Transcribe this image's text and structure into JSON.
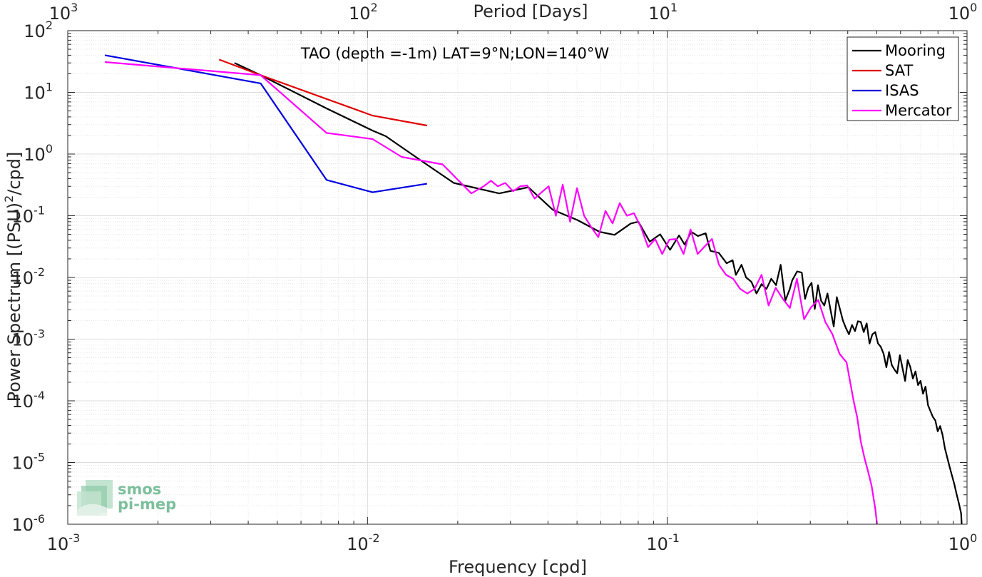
{
  "chart_data": {
    "type": "line",
    "title": "TAO (depth =-1m) LAT=9°N;LON=140°W",
    "xlabel": "Frequency [cpd]",
    "ylabel": "Power Spectrum [(PSU)",
    "ylabel_sup": "2",
    "ylabel_tail": "/cpd]",
    "top_xlabel": "Period [Days]",
    "x_scale": "log",
    "y_scale": "log",
    "xlim": [
      0.001,
      1
    ],
    "ylim": [
      1e-06,
      100
    ],
    "grid": true,
    "legend_position": "top-right",
    "x_ticks": [
      {
        "value": 0.001,
        "base": "10",
        "exp": "-3"
      },
      {
        "value": 0.01,
        "base": "10",
        "exp": "-2"
      },
      {
        "value": 0.1,
        "base": "10",
        "exp": "-1"
      },
      {
        "value": 1,
        "base": "10",
        "exp": "0"
      }
    ],
    "top_ticks": [
      {
        "value": 0.001,
        "base": "10",
        "exp": "3"
      },
      {
        "value": 0.01,
        "base": "10",
        "exp": "2"
      },
      {
        "value": 0.1,
        "base": "10",
        "exp": "1"
      },
      {
        "value": 1,
        "base": "10",
        "exp": "0"
      }
    ],
    "y_ticks": [
      {
        "value": 100,
        "base": "10",
        "exp": "2"
      },
      {
        "value": 10,
        "base": "10",
        "exp": "1"
      },
      {
        "value": 1,
        "base": "10",
        "exp": "0"
      },
      {
        "value": 0.1,
        "base": "10",
        "exp": "-1"
      },
      {
        "value": 0.01,
        "base": "10",
        "exp": "-2"
      },
      {
        "value": 0.001,
        "base": "10",
        "exp": "-3"
      },
      {
        "value": 0.0001,
        "base": "10",
        "exp": "-4"
      },
      {
        "value": 1e-05,
        "base": "10",
        "exp": "-5"
      },
      {
        "value": 1e-06,
        "base": "10",
        "exp": "-6"
      }
    ],
    "series": [
      {
        "name": "Mooring",
        "color": "#000000",
        "x": [
          0.0036,
          0.0044,
          0.0073,
          0.0104,
          0.0115,
          0.0156,
          0.0194,
          0.0275,
          0.0344,
          0.0415,
          0.0502,
          0.0594,
          0.0667,
          0.0756,
          0.0801,
          0.0874,
          0.0947,
          0.1022,
          0.1095,
          0.1143,
          0.1202,
          0.1265,
          0.1343,
          0.1393,
          0.1486,
          0.1578,
          0.1652,
          0.1694,
          0.1769,
          0.1832,
          0.1908,
          0.1985,
          0.2063,
          0.2142,
          0.2223,
          0.2306,
          0.239,
          0.2476,
          0.2563,
          0.2612,
          0.2711,
          0.2811,
          0.2882,
          0.2954,
          0.3029,
          0.3105,
          0.3183,
          0.3261,
          0.3342,
          0.3424,
          0.3508,
          0.3592,
          0.3678,
          0.3766,
          0.3856,
          0.3947,
          0.4039,
          0.4133,
          0.4228,
          0.4325,
          0.4424,
          0.4524,
          0.4626,
          0.4729,
          0.4833,
          0.494,
          0.5048,
          0.5157,
          0.5268,
          0.5381,
          0.5495,
          0.5611,
          0.5729,
          0.5848,
          0.5969,
          0.6091,
          0.6215,
          0.6341,
          0.6469,
          0.6598,
          0.6729,
          0.6862,
          0.6996,
          0.7132,
          0.727,
          0.741,
          0.7551,
          0.7694,
          0.7839,
          0.7986,
          0.8135,
          0.8285,
          0.8437,
          0.8591,
          0.8747,
          0.8905,
          0.9064,
          0.9226,
          0.9389,
          0.9554,
          0.96
        ],
        "y": [
          30,
          19,
          5.5,
          2.4,
          1.95,
          0.7,
          0.34,
          0.23,
          0.29,
          0.125,
          0.085,
          0.055,
          0.049,
          0.075,
          0.08,
          0.038,
          0.05,
          0.028,
          0.048,
          0.034,
          0.055,
          0.047,
          0.052,
          0.027,
          0.025,
          0.017,
          0.019,
          0.011,
          0.016,
          0.01,
          0.0085,
          0.0055,
          0.0078,
          0.0065,
          0.0095,
          0.0075,
          0.016,
          0.0042,
          0.0065,
          0.009,
          0.0125,
          0.012,
          0.0045,
          0.0068,
          0.0082,
          0.0031,
          0.0075,
          0.0042,
          0.0035,
          0.0055,
          0.0029,
          0.0016,
          0.0048,
          0.0031,
          0.002,
          0.0015,
          0.0012,
          0.0017,
          0.00135,
          0.00195,
          0.0019,
          0.0013,
          0.0018,
          0.00085,
          0.0012,
          0.0013,
          0.00085,
          0.00075,
          0.00058,
          0.00035,
          0.00062,
          0.00038,
          0.00032,
          0.00028,
          0.00055,
          0.00034,
          0.00021,
          0.00046,
          0.00035,
          0.00023,
          0.0003,
          0.00018,
          0.00021,
          0.00013,
          0.00017,
          8.5e-05,
          6.8e-05,
          5.5e-05,
          4.8e-05,
          3.2e-05,
          3.9e-05,
          2.8e-05,
          1.7e-05,
          1.2e-05,
          8.5e-06,
          6.2e-06,
          4.5e-06,
          3.1e-06,
          2.2e-06,
          1.5e-06,
          1e-06
        ]
      },
      {
        "name": "SAT",
        "color": "#e00000",
        "x": [
          0.0032,
          0.0044,
          0.0104,
          0.0158
        ],
        "y": [
          34,
          19,
          4.2,
          2.9
        ]
      },
      {
        "name": "ISAS",
        "color": "#0000e0",
        "x": [
          0.00133,
          0.0044,
          0.0073,
          0.0104,
          0.0158
        ],
        "y": [
          40,
          14,
          0.38,
          0.24,
          0.33
        ]
      },
      {
        "name": "Mercator",
        "color": "#ff00ff",
        "x": [
          0.00133,
          0.0044,
          0.0073,
          0.0104,
          0.013,
          0.0178,
          0.0222,
          0.0244,
          0.0258,
          0.0272,
          0.0288,
          0.0306,
          0.0323,
          0.0341,
          0.0361,
          0.0381,
          0.0402,
          0.0425,
          0.0448,
          0.0474,
          0.05,
          0.0528,
          0.0558,
          0.0589,
          0.0622,
          0.0657,
          0.0694,
          0.0733,
          0.0774,
          0.0817,
          0.0863,
          0.0911,
          0.0962,
          0.1016,
          0.1073,
          0.1133,
          0.1196,
          0.1263,
          0.1334,
          0.1409,
          0.1488,
          0.1571,
          0.1659,
          0.1752,
          0.185,
          0.1953,
          0.2063,
          0.2178,
          0.23,
          0.2429,
          0.2565,
          0.2708,
          0.286,
          0.302,
          0.3189,
          0.3367,
          0.3556,
          0.3755,
          0.3965,
          0.4187,
          0.4299,
          0.4421,
          0.4546,
          0.4674,
          0.4806,
          0.4942,
          0.501
        ],
        "y": [
          31,
          19,
          2.2,
          1.75,
          0.9,
          0.68,
          0.23,
          0.3,
          0.37,
          0.3,
          0.34,
          0.25,
          0.3,
          0.31,
          0.19,
          0.24,
          0.3,
          0.1,
          0.32,
          0.08,
          0.28,
          0.1,
          0.065,
          0.045,
          0.12,
          0.075,
          0.16,
          0.1,
          0.11,
          0.065,
          0.031,
          0.042,
          0.024,
          0.041,
          0.042,
          0.024,
          0.06,
          0.024,
          0.032,
          0.042,
          0.016,
          0.011,
          0.0095,
          0.0065,
          0.0055,
          0.0065,
          0.011,
          0.0035,
          0.0068,
          0.0045,
          0.0032,
          0.0095,
          0.0021,
          0.0033,
          0.0043,
          0.0019,
          0.0012,
          0.00058,
          0.00042,
          9.8e-05,
          5.5e-05,
          2.2e-05,
          1.2e-05,
          7.2e-06,
          4.2e-06,
          1.8e-06,
          1e-06
        ]
      }
    ]
  },
  "logo": {
    "line1": "smos",
    "line2": "pi-mep",
    "color": "#7dbf9c"
  }
}
